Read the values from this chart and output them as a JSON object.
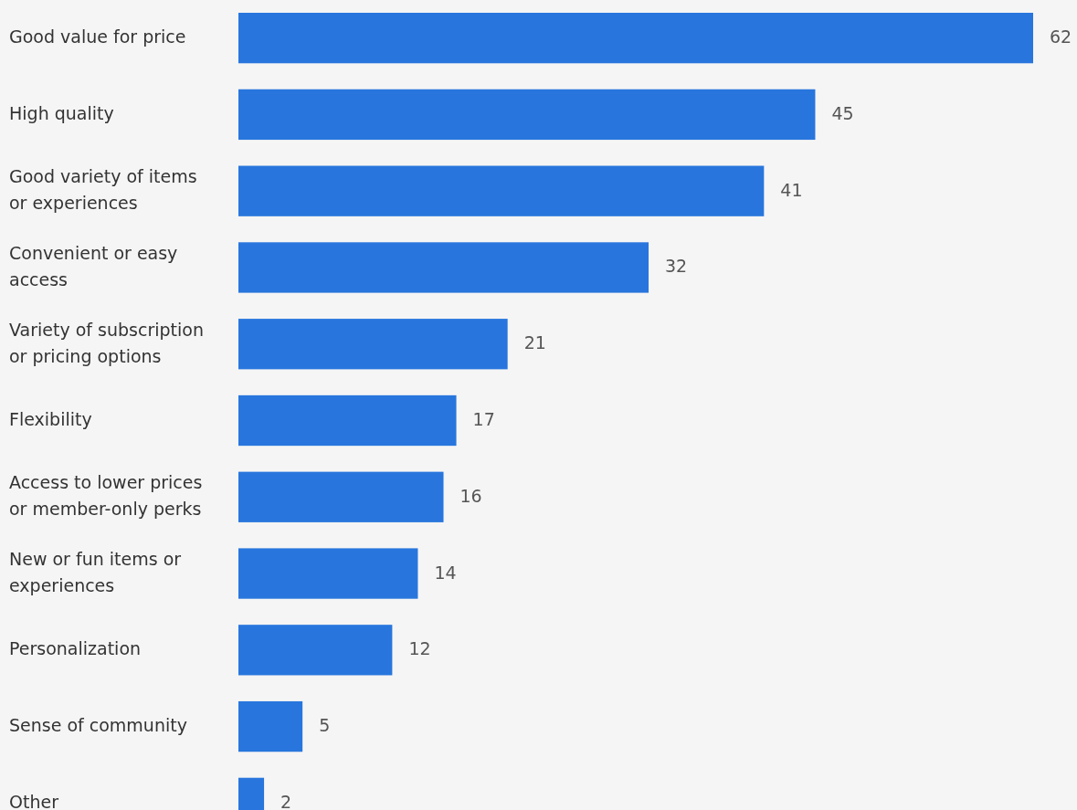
{
  "chart_data": {
    "type": "bar",
    "orientation": "horizontal",
    "categories": [
      "Good value for price",
      "High quality",
      "Good variety of items or experiences",
      "Convenient or easy access",
      "Variety of subscription or pricing options",
      "Flexibility",
      "Access to lower prices or member-only perks",
      "New or fun items or experiences",
      "Personalization",
      "Sense of community",
      "Other"
    ],
    "values": [
      62,
      45,
      41,
      32,
      21,
      17,
      16,
      14,
      12,
      5,
      2
    ],
    "color": "#2876dd",
    "data_labels": true,
    "grid": false
  }
}
